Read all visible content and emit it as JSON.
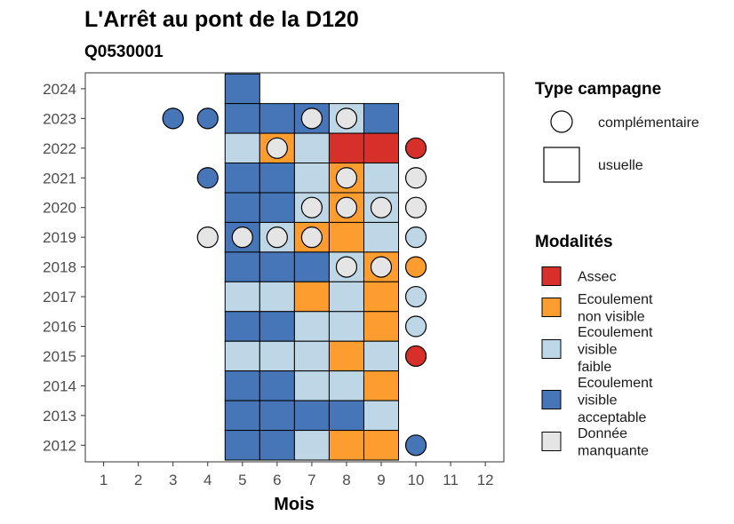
{
  "chart_data": {
    "type": "heatmap",
    "title": "L'Arrêt au pont de la D120",
    "subtitle": "Q0530001",
    "xlabel": "Mois",
    "x_ticks": [
      1,
      2,
      3,
      4,
      5,
      6,
      7,
      8,
      9,
      10,
      11,
      12
    ],
    "y_ticks": [
      2012,
      2013,
      2014,
      2015,
      2016,
      2017,
      2018,
      2019,
      2020,
      2021,
      2022,
      2023,
      2024
    ],
    "colors": {
      "Assec": "#d7302a",
      "Ecoulement non visible": "#fd9d2f",
      "Ecoulement visible faible": "#bdd7e7",
      "Ecoulement visible acceptable": "#4676b7",
      "Donnée manquante": "#e5e5e5"
    },
    "legend_type": {
      "title": "Type campagne",
      "items": [
        {
          "label": "complémentaire",
          "shape": "circle"
        },
        {
          "label": "usuelle",
          "shape": "square"
        }
      ]
    },
    "legend_modalites": {
      "title": "Modalités",
      "items": [
        {
          "key": "Assec",
          "lines": [
            "Assec"
          ]
        },
        {
          "key": "Ecoulement non visible",
          "lines": [
            "Ecoulement",
            "non visible"
          ]
        },
        {
          "key": "Ecoulement visible faible",
          "lines": [
            "Ecoulement",
            "visible",
            "faible"
          ]
        },
        {
          "key": "Ecoulement visible acceptable",
          "lines": [
            "Ecoulement",
            "visible",
            "acceptable"
          ]
        },
        {
          "key": "Donnée manquante",
          "lines": [
            "Donnée",
            "manquante"
          ]
        }
      ]
    },
    "usuelle": [
      {
        "year": 2024,
        "month": 5,
        "modalite": "Ecoulement visible acceptable"
      },
      {
        "year": 2023,
        "month": 5,
        "modalite": "Ecoulement visible acceptable"
      },
      {
        "year": 2023,
        "month": 6,
        "modalite": "Ecoulement visible acceptable"
      },
      {
        "year": 2023,
        "month": 7,
        "modalite": "Ecoulement visible acceptable"
      },
      {
        "year": 2023,
        "month": 8,
        "modalite": "Ecoulement visible faible"
      },
      {
        "year": 2023,
        "month": 9,
        "modalite": "Ecoulement visible acceptable"
      },
      {
        "year": 2022,
        "month": 5,
        "modalite": "Ecoulement visible faible"
      },
      {
        "year": 2022,
        "month": 6,
        "modalite": "Ecoulement non visible"
      },
      {
        "year": 2022,
        "month": 7,
        "modalite": "Ecoulement visible faible"
      },
      {
        "year": 2022,
        "month": 8,
        "modalite": "Assec"
      },
      {
        "year": 2022,
        "month": 9,
        "modalite": "Assec"
      },
      {
        "year": 2021,
        "month": 5,
        "modalite": "Ecoulement visible acceptable"
      },
      {
        "year": 2021,
        "month": 6,
        "modalite": "Ecoulement visible acceptable"
      },
      {
        "year": 2021,
        "month": 7,
        "modalite": "Ecoulement visible faible"
      },
      {
        "year": 2021,
        "month": 8,
        "modalite": "Ecoulement non visible"
      },
      {
        "year": 2021,
        "month": 9,
        "modalite": "Ecoulement visible faible"
      },
      {
        "year": 2020,
        "month": 5,
        "modalite": "Ecoulement visible acceptable"
      },
      {
        "year": 2020,
        "month": 6,
        "modalite": "Ecoulement visible acceptable"
      },
      {
        "year": 2020,
        "month": 7,
        "modalite": "Ecoulement visible faible"
      },
      {
        "year": 2020,
        "month": 8,
        "modalite": "Ecoulement non visible"
      },
      {
        "year": 2020,
        "month": 9,
        "modalite": "Ecoulement visible faible"
      },
      {
        "year": 2019,
        "month": 5,
        "modalite": "Ecoulement visible acceptable"
      },
      {
        "year": 2019,
        "month": 6,
        "modalite": "Ecoulement visible faible"
      },
      {
        "year": 2019,
        "month": 7,
        "modalite": "Ecoulement non visible"
      },
      {
        "year": 2019,
        "month": 8,
        "modalite": "Ecoulement non visible"
      },
      {
        "year": 2019,
        "month": 9,
        "modalite": "Ecoulement visible faible"
      },
      {
        "year": 2018,
        "month": 5,
        "modalite": "Ecoulement visible acceptable"
      },
      {
        "year": 2018,
        "month": 6,
        "modalite": "Ecoulement visible acceptable"
      },
      {
        "year": 2018,
        "month": 7,
        "modalite": "Ecoulement visible acceptable"
      },
      {
        "year": 2018,
        "month": 8,
        "modalite": "Ecoulement visible faible"
      },
      {
        "year": 2018,
        "month": 9,
        "modalite": "Ecoulement non visible"
      },
      {
        "year": 2017,
        "month": 5,
        "modalite": "Ecoulement visible faible"
      },
      {
        "year": 2017,
        "month": 6,
        "modalite": "Ecoulement visible faible"
      },
      {
        "year": 2017,
        "month": 7,
        "modalite": "Ecoulement non visible"
      },
      {
        "year": 2017,
        "month": 8,
        "modalite": "Ecoulement visible faible"
      },
      {
        "year": 2017,
        "month": 9,
        "modalite": "Ecoulement non visible"
      },
      {
        "year": 2016,
        "month": 5,
        "modalite": "Ecoulement visible acceptable"
      },
      {
        "year": 2016,
        "month": 6,
        "modalite": "Ecoulement visible acceptable"
      },
      {
        "year": 2016,
        "month": 7,
        "modalite": "Ecoulement visible faible"
      },
      {
        "year": 2016,
        "month": 8,
        "modalite": "Ecoulement visible faible"
      },
      {
        "year": 2016,
        "month": 9,
        "modalite": "Ecoulement non visible"
      },
      {
        "year": 2015,
        "month": 5,
        "modalite": "Ecoulement visible faible"
      },
      {
        "year": 2015,
        "month": 6,
        "modalite": "Ecoulement visible faible"
      },
      {
        "year": 2015,
        "month": 7,
        "modalite": "Ecoulement visible faible"
      },
      {
        "year": 2015,
        "month": 8,
        "modalite": "Ecoulement non visible"
      },
      {
        "year": 2015,
        "month": 9,
        "modalite": "Ecoulement visible faible"
      },
      {
        "year": 2014,
        "month": 5,
        "modalite": "Ecoulement visible acceptable"
      },
      {
        "year": 2014,
        "month": 6,
        "modalite": "Ecoulement visible acceptable"
      },
      {
        "year": 2014,
        "month": 7,
        "modalite": "Ecoulement visible faible"
      },
      {
        "year": 2014,
        "month": 8,
        "modalite": "Ecoulement visible faible"
      },
      {
        "year": 2014,
        "month": 9,
        "modalite": "Ecoulement non visible"
      },
      {
        "year": 2013,
        "month": 5,
        "modalite": "Ecoulement visible acceptable"
      },
      {
        "year": 2013,
        "month": 6,
        "modalite": "Ecoulement visible acceptable"
      },
      {
        "year": 2013,
        "month": 7,
        "modalite": "Ecoulement visible acceptable"
      },
      {
        "year": 2013,
        "month": 8,
        "modalite": "Ecoulement visible acceptable"
      },
      {
        "year": 2013,
        "month": 9,
        "modalite": "Ecoulement visible faible"
      },
      {
        "year": 2012,
        "month": 5,
        "modalite": "Ecoulement visible acceptable"
      },
      {
        "year": 2012,
        "month": 6,
        "modalite": "Ecoulement visible acceptable"
      },
      {
        "year": 2012,
        "month": 7,
        "modalite": "Ecoulement visible faible"
      },
      {
        "year": 2012,
        "month": 8,
        "modalite": "Ecoulement non visible"
      },
      {
        "year": 2012,
        "month": 9,
        "modalite": "Ecoulement non visible"
      }
    ],
    "complementaire": [
      {
        "year": 2023,
        "month": 3,
        "modalite": "Ecoulement visible acceptable"
      },
      {
        "year": 2023,
        "month": 4,
        "modalite": "Ecoulement visible acceptable"
      },
      {
        "year": 2023,
        "month": 7,
        "modalite": "Donnée manquante"
      },
      {
        "year": 2023,
        "month": 8,
        "modalite": "Donnée manquante"
      },
      {
        "year": 2022,
        "month": 6,
        "modalite": "Donnée manquante"
      },
      {
        "year": 2022,
        "month": 10,
        "modalite": "Assec"
      },
      {
        "year": 2021,
        "month": 4,
        "modalite": "Ecoulement visible acceptable"
      },
      {
        "year": 2021,
        "month": 8,
        "modalite": "Donnée manquante"
      },
      {
        "year": 2021,
        "month": 10,
        "modalite": "Donnée manquante"
      },
      {
        "year": 2020,
        "month": 7,
        "modalite": "Donnée manquante"
      },
      {
        "year": 2020,
        "month": 8,
        "modalite": "Donnée manquante"
      },
      {
        "year": 2020,
        "month": 9,
        "modalite": "Donnée manquante"
      },
      {
        "year": 2020,
        "month": 10,
        "modalite": "Donnée manquante"
      },
      {
        "year": 2019,
        "month": 4,
        "modalite": "Donnée manquante"
      },
      {
        "year": 2019,
        "month": 5,
        "modalite": "Donnée manquante"
      },
      {
        "year": 2019,
        "month": 6,
        "modalite": "Donnée manquante"
      },
      {
        "year": 2019,
        "month": 7,
        "modalite": "Donnée manquante"
      },
      {
        "year": 2019,
        "month": 10,
        "modalite": "Ecoulement visible faible"
      },
      {
        "year": 2018,
        "month": 8,
        "modalite": "Donnée manquante"
      },
      {
        "year": 2018,
        "month": 9,
        "modalite": "Donnée manquante"
      },
      {
        "year": 2018,
        "month": 10,
        "modalite": "Ecoulement non visible"
      },
      {
        "year": 2017,
        "month": 10,
        "modalite": "Ecoulement visible faible"
      },
      {
        "year": 2016,
        "month": 10,
        "modalite": "Ecoulement visible faible"
      },
      {
        "year": 2015,
        "month": 10,
        "modalite": "Assec"
      },
      {
        "year": 2012,
        "month": 10,
        "modalite": "Ecoulement visible acceptable"
      }
    ],
    "xlim": [
      0.5,
      12.5
    ],
    "ylim": [
      2011.45,
      2024.6
    ],
    "grid": false,
    "legend_position": "right"
  }
}
